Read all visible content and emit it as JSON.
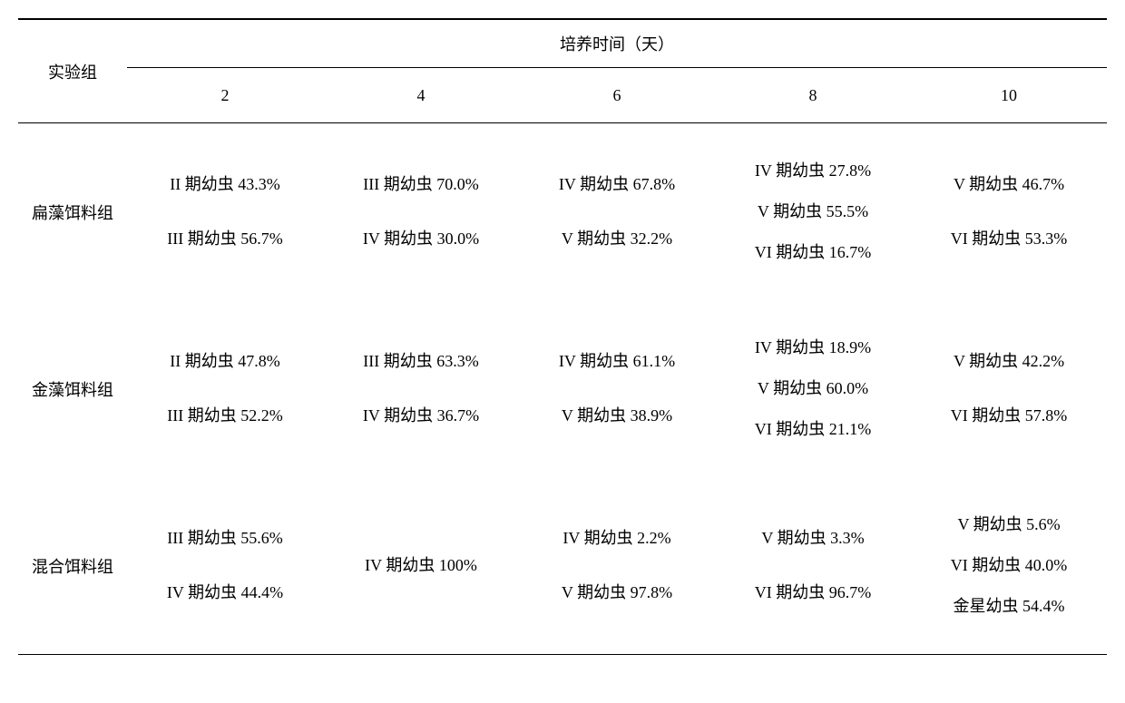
{
  "type": "table",
  "colors": {
    "text": "#000000",
    "background": "#ffffff",
    "border": "#000000"
  },
  "fontsize_pt": 14,
  "header": {
    "group_label": "实验组",
    "time_label": "培养时间（天）",
    "days": [
      "2",
      "4",
      "6",
      "8",
      "10"
    ]
  },
  "rows": [
    {
      "group": "扁藻饵料组",
      "cells": [
        [
          "II 期幼虫 43.3%",
          "III 期幼虫 56.7%"
        ],
        [
          "III 期幼虫 70.0%",
          "IV 期幼虫 30.0%"
        ],
        [
          "IV 期幼虫 67.8%",
          "V 期幼虫 32.2%"
        ],
        [
          "IV 期幼虫 27.8%",
          "V 期幼虫 55.5%",
          "VI 期幼虫 16.7%"
        ],
        [
          "V 期幼虫 46.7%",
          "VI 期幼虫 53.3%"
        ]
      ]
    },
    {
      "group": "金藻饵料组",
      "cells": [
        [
          "II 期幼虫 47.8%",
          "III 期幼虫 52.2%"
        ],
        [
          "III 期幼虫 63.3%",
          "IV 期幼虫 36.7%"
        ],
        [
          "IV 期幼虫 61.1%",
          "V 期幼虫 38.9%"
        ],
        [
          "IV 期幼虫 18.9%",
          "V 期幼虫 60.0%",
          "VI 期幼虫 21.1%"
        ],
        [
          "V 期幼虫 42.2%",
          "VI 期幼虫 57.8%"
        ]
      ]
    },
    {
      "group": "混合饵料组",
      "cells": [
        [
          "III 期幼虫 55.6%",
          "IV 期幼虫 44.4%"
        ],
        [
          "IV 期幼虫 100%"
        ],
        [
          "IV 期幼虫 2.2%",
          "V 期幼虫 97.8%"
        ],
        [
          "V 期幼虫 3.3%",
          "VI 期幼虫 96.7%"
        ],
        [
          "V 期幼虫 5.6%",
          "VI 期幼虫 40.0%",
          "金星幼虫 54.4%"
        ]
      ]
    }
  ]
}
